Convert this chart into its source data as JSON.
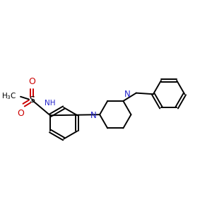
{
  "bg_color": "#ffffff",
  "line_color": "#000000",
  "n_color": "#2222cc",
  "o_color": "#cc0000",
  "lw": 1.4,
  "figsize": [
    3.0,
    3.0
  ],
  "dpi": 100,
  "xlim": [
    0,
    10
  ],
  "ylim": [
    0,
    10
  ]
}
